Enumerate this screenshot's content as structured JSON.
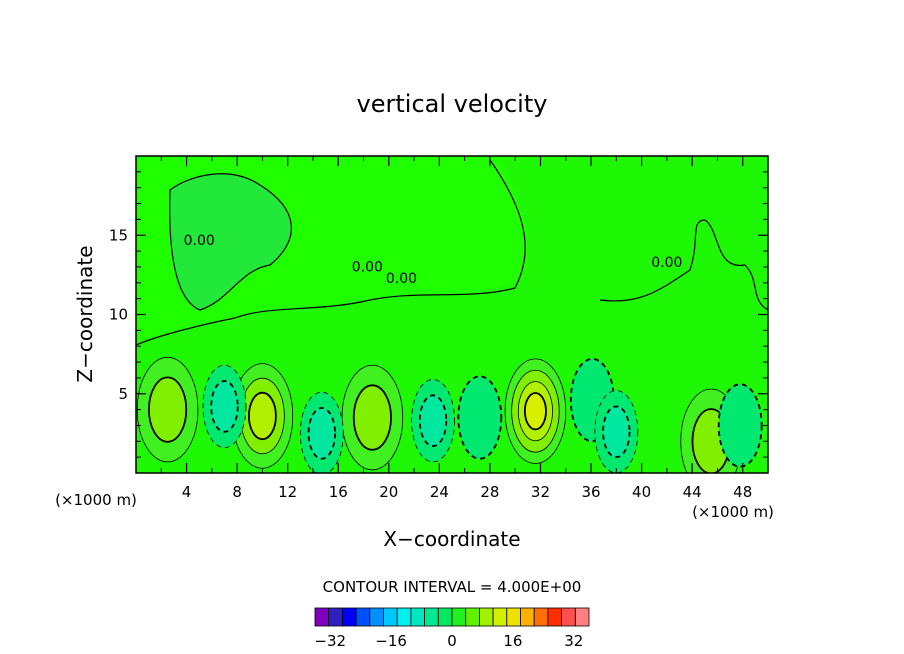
{
  "chart_data": {
    "type": "heatmap",
    "title": "vertical velocity",
    "xlabel": "X−coordinate",
    "ylabel": "Z−coordinate",
    "x_unit_left": "(×1000 m)",
    "x_unit_right": "(×1000 m)",
    "xlim": [
      0,
      50
    ],
    "ylim": [
      0,
      20
    ],
    "x_ticks": [
      4,
      8,
      12,
      16,
      20,
      24,
      28,
      32,
      36,
      40,
      44,
      48
    ],
    "y_ticks": [
      5,
      10,
      15
    ],
    "contour_interval_label": "CONTOUR INTERVAL = 4.000E+00",
    "contour_labels": [
      {
        "text": "0.00",
        "x": 5.0,
        "y": 14.4
      },
      {
        "text": "0.00",
        "x": 18.3,
        "y": 12.7
      },
      {
        "text": "0.00",
        "x": 21.0,
        "y": 12.0
      },
      {
        "text": "0.00",
        "x": 42.0,
        "y": 13.0
      }
    ],
    "features": [
      {
        "kind": "updraft",
        "x": 2.5,
        "y": 4.0,
        "peak": 6
      },
      {
        "kind": "updraft",
        "x": 10.0,
        "y": 3.6,
        "peak": 10
      },
      {
        "kind": "updraft",
        "x": 18.7,
        "y": 3.5,
        "peak": 6
      },
      {
        "kind": "updraft",
        "x": 31.6,
        "y": 3.9,
        "peak": 14
      },
      {
        "kind": "updraft",
        "x": 45.5,
        "y": 2.0,
        "peak": 6
      },
      {
        "kind": "downdraft",
        "x": 7.0,
        "y": 4.2,
        "peak": -6
      },
      {
        "kind": "downdraft",
        "x": 14.7,
        "y": 2.5,
        "peak": -7
      },
      {
        "kind": "downdraft",
        "x": 23.5,
        "y": 3.3,
        "peak": -7
      },
      {
        "kind": "downdraft",
        "x": 27.2,
        "y": 3.5,
        "peak": -5
      },
      {
        "kind": "downdraft",
        "x": 36.1,
        "y": 4.6,
        "peak": -4
      },
      {
        "kind": "downdraft",
        "x": 38.0,
        "y": 2.6,
        "peak": -6
      },
      {
        "kind": "downdraft",
        "x": 47.8,
        "y": 3.0,
        "peak": -5
      }
    ],
    "colorbar": {
      "tick_labels": [
        "−32",
        "−16",
        "0",
        "16",
        "32"
      ],
      "tick_values": [
        -32,
        -16,
        0,
        16,
        32
      ],
      "range": [
        -36,
        36
      ],
      "colors": [
        "#8000c0",
        "#3020c0",
        "#0000ff",
        "#0050ff",
        "#0090ff",
        "#00c8ff",
        "#00f0f0",
        "#00e8c0",
        "#00e890",
        "#00e860",
        "#20f020",
        "#60f000",
        "#a0f000",
        "#d0f000",
        "#f0e000",
        "#ffb000",
        "#ff7000",
        "#ff3000",
        "#ff5050",
        "#ff8080"
      ]
    }
  }
}
